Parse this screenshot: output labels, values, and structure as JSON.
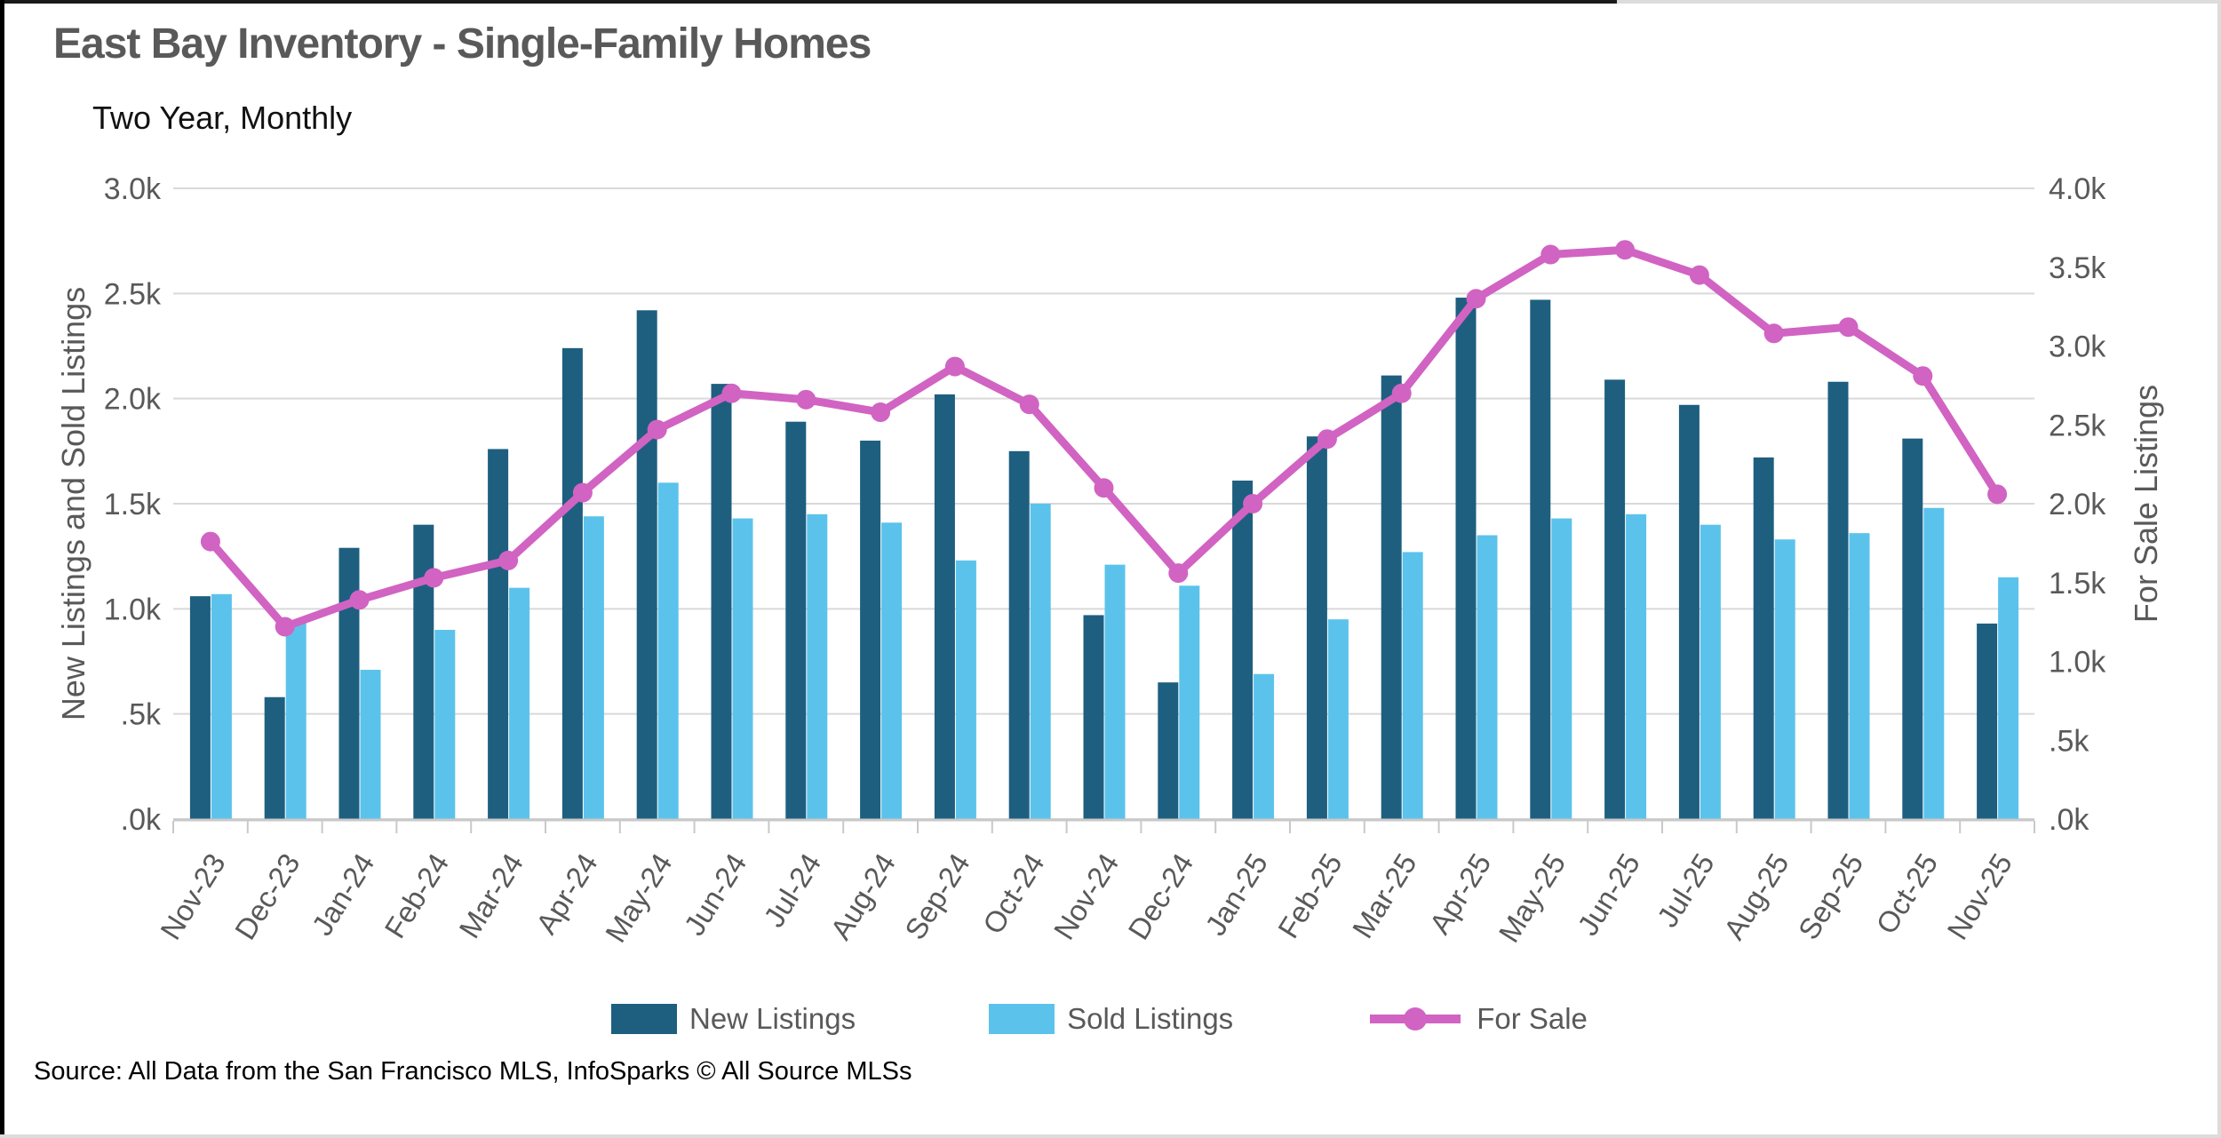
{
  "header": {
    "title": "East Bay Inventory - Single-Family Homes",
    "subtitle": "Two Year, Monthly"
  },
  "colors": {
    "new_listings": "#1E5F80",
    "sold_listings": "#5BC3EB",
    "for_sale": "#D163C3",
    "grid": "#D9D9D9",
    "axis_line": "#C9C9C9",
    "axis_text": "#595959",
    "title_text": "#595959"
  },
  "chart_data": {
    "type": "bar",
    "subtype": "grouped-bars-with-line-overlay",
    "title": "East Bay Inventory - Single-Family Homes",
    "subtitle": "Two Year, Monthly",
    "categories": [
      "Nov-23",
      "Dec-23",
      "Jan-24",
      "Feb-24",
      "Mar-24",
      "Apr-24",
      "May-24",
      "Jun-24",
      "Jul-24",
      "Aug-24",
      "Sep-24",
      "Oct-24",
      "Nov-24",
      "Dec-24",
      "Jan-25",
      "Feb-25",
      "Mar-25",
      "Apr-25",
      "May-25",
      "Jun-25",
      "Jul-25",
      "Aug-25",
      "Sep-25",
      "Oct-25",
      "Nov-25"
    ],
    "series": [
      {
        "name": "New Listings",
        "kind": "bar",
        "axis": "left",
        "color_key": "new_listings",
        "unit": "thousands",
        "values": [
          1.06,
          0.58,
          1.29,
          1.4,
          1.76,
          2.24,
          2.42,
          2.07,
          1.89,
          1.8,
          2.02,
          1.75,
          0.97,
          0.65,
          1.61,
          1.82,
          2.11,
          2.48,
          2.47,
          2.09,
          1.97,
          1.72,
          2.08,
          1.81,
          0.93
        ]
      },
      {
        "name": "Sold Listings",
        "kind": "bar",
        "axis": "left",
        "color_key": "sold_listings",
        "unit": "thousands",
        "values": [
          1.07,
          0.94,
          0.71,
          0.9,
          1.1,
          1.44,
          1.6,
          1.43,
          1.45,
          1.41,
          1.23,
          1.5,
          1.21,
          1.11,
          0.69,
          0.95,
          1.27,
          1.35,
          1.43,
          1.45,
          1.4,
          1.33,
          1.36,
          1.48,
          1.15
        ]
      },
      {
        "name": "For Sale",
        "kind": "line",
        "axis": "right",
        "color_key": "for_sale",
        "unit": "thousands",
        "values": [
          1.76,
          1.22,
          1.39,
          1.53,
          1.64,
          2.07,
          2.47,
          2.7,
          2.66,
          2.58,
          2.87,
          2.63,
          2.1,
          1.56,
          2.0,
          2.41,
          2.7,
          3.3,
          3.58,
          3.61,
          3.45,
          3.08,
          3.12,
          2.81,
          2.06
        ]
      }
    ],
    "left_axis": {
      "label": "New Listings and Sold Listings",
      "max": 3.0,
      "min": 0.0,
      "tick_labels": [
        "3.0k",
        "2.5k",
        "2.0k",
        "1.5k",
        "1.0k",
        ".5k",
        ".0k"
      ]
    },
    "right_axis": {
      "label": "For Sale Listings",
      "max": 4.0,
      "min": 0.0,
      "tick_labels": [
        "4.0k",
        "3.5k",
        "3.0k",
        "2.5k",
        "2.0k",
        "1.5k",
        "1.0k",
        ".5k",
        ".0k"
      ]
    },
    "grid": "horizontal-on",
    "legend_position": "bottom-center",
    "legend": [
      {
        "label": "New Listings",
        "marker": "swatch",
        "color_key": "new_listings"
      },
      {
        "label": "Sold Listings",
        "marker": "swatch",
        "color_key": "sold_listings"
      },
      {
        "label": "For Sale",
        "marker": "line-dot",
        "color_key": "for_sale"
      }
    ]
  },
  "footer": {
    "source": "Source: All Data from the San Francisco MLS, InfoSparks © All Source MLSs"
  }
}
